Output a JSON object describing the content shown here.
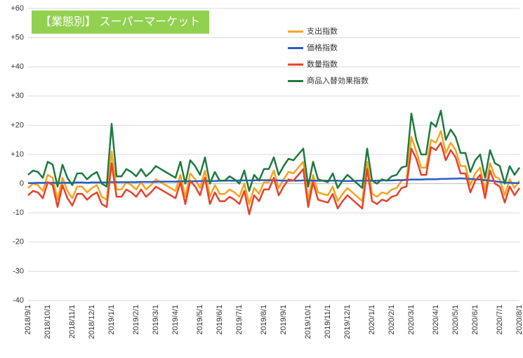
{
  "chart_data": {
    "type": "line",
    "title": "【業態別】 スーパーマーケット",
    "categories": [
      "2018/9/1",
      null,
      null,
      null,
      "2018/10/1",
      null,
      null,
      null,
      null,
      "2018/11/1",
      null,
      null,
      null,
      "2018/12/1",
      null,
      null,
      null,
      "2019/1/1",
      null,
      null,
      null,
      null,
      "2019/2/1",
      null,
      null,
      null,
      "2019/3/1",
      null,
      null,
      null,
      "2019/4/1",
      null,
      null,
      null,
      null,
      "2019/5/1",
      null,
      null,
      null,
      "2019/6/1",
      null,
      null,
      null,
      "2019/7/1",
      null,
      null,
      null,
      null,
      "2019/8/1",
      null,
      null,
      null,
      "2019/9/1",
      null,
      null,
      null,
      null,
      "2019/10/1",
      null,
      null,
      null,
      "2019/11/1",
      null,
      null,
      null,
      "2019/12/1",
      null,
      null,
      null,
      null,
      "2020/1/1",
      null,
      null,
      null,
      "2020/2/1",
      null,
      null,
      null,
      "2020/3/1",
      null,
      null,
      null,
      null,
      "2020/4/1",
      null,
      null,
      null,
      "2020/5/1",
      null,
      null,
      null,
      "2020/6/1",
      null,
      null,
      null,
      null,
      "2020/7/1",
      null,
      null,
      null,
      "2020/8/1"
    ],
    "series": [
      {
        "name": "支出指数",
        "color": "#f5a31c",
        "values": [
          -1.5,
          0,
          -0.5,
          -2.5,
          3,
          2,
          -5.5,
          2,
          -2.5,
          -5,
          -1,
          -1,
          -3,
          -1.5,
          -0.5,
          -4.5,
          -5.5,
          11,
          -2,
          -2,
          0.5,
          -0.5,
          -2,
          0.5,
          -2,
          -0.5,
          1.5,
          0.5,
          -0.5,
          -1.5,
          -2.5,
          3,
          -4.5,
          3.5,
          1.5,
          -1.5,
          4.5,
          -4.5,
          -0.5,
          -3.5,
          -3.5,
          -2,
          -3,
          -4.5,
          0,
          -7,
          -1.5,
          -3.5,
          0.5,
          0.5,
          4.5,
          -1.5,
          1.5,
          4,
          3.5,
          5.5,
          7.5,
          -5.5,
          3,
          -3,
          -3.5,
          -4,
          -1,
          -6,
          -3.5,
          -1.5,
          -3,
          -4.5,
          -6,
          7.5,
          -3.5,
          -4.5,
          -3,
          -3.5,
          -2,
          -1.5,
          1,
          1.5,
          16,
          11,
          5.5,
          5.5,
          15,
          14,
          18,
          10.5,
          14,
          11.5,
          6,
          6,
          -0.5,
          3.5,
          5.5,
          -2.5,
          7,
          2.5,
          1.5,
          -4,
          1.5,
          -1.5,
          1
        ]
      },
      {
        "name": "価格指数",
        "color": "#2a5cc8",
        "values": [
          0.2,
          0.2,
          0.3,
          0.3,
          0.3,
          0.3,
          0.2,
          0.3,
          0.3,
          0.3,
          0.4,
          0.4,
          0.3,
          0.4,
          0.4,
          0.4,
          0.4,
          0.5,
          0.5,
          0.5,
          0.5,
          0.5,
          0.5,
          0.6,
          0.6,
          0.6,
          0.6,
          0.7,
          0.7,
          0.7,
          0.7,
          0.8,
          0.8,
          0.8,
          0.8,
          0.9,
          0.9,
          0.9,
          0.9,
          1,
          1,
          1,
          1,
          1.1,
          1.1,
          1.1,
          1.1,
          1.2,
          1.2,
          1.2,
          1.1,
          1.1,
          1,
          1,
          1,
          1,
          1.1,
          1.1,
          1,
          1,
          1,
          1,
          1,
          1,
          0.9,
          0.9,
          0.9,
          1,
          1,
          1,
          1,
          1,
          1.1,
          1.1,
          1.1,
          1.2,
          1.2,
          1.3,
          1.4,
          1.4,
          1.4,
          1.5,
          1.5,
          1.5,
          1.6,
          1.6,
          1.7,
          1.7,
          1.8,
          1.7,
          1.6,
          1.5,
          1.4,
          1.2,
          1.0,
          0.8,
          0.6,
          0.4,
          0.3,
          0.2,
          0.2
        ]
      },
      {
        "name": "数量指数",
        "color": "#e8412a",
        "values": [
          -4,
          -2.5,
          -3,
          -5,
          0.5,
          -0.5,
          -8,
          -0.5,
          -5,
          -7.5,
          -3.5,
          -3.5,
          -5.5,
          -4,
          -3,
          -7,
          -8,
          7,
          -4.5,
          -4.5,
          -2,
          -3,
          -4.5,
          -2,
          -4.5,
          -3,
          -1,
          -2,
          -3,
          -4,
          -5,
          0.5,
          -7,
          1,
          -1,
          -4,
          2,
          -7,
          -3,
          -6,
          -6,
          -4.5,
          -5.5,
          -7,
          -2.5,
          -10.5,
          -4,
          -6,
          -2,
          -2,
          2,
          -4,
          -1,
          1.5,
          1,
          3,
          5,
          -8,
          0.5,
          -5.5,
          -6,
          -6.5,
          -3.5,
          -8.5,
          -6,
          -4,
          -5.5,
          -7,
          -8.5,
          5,
          -6,
          -7,
          -5.5,
          -6,
          -4.5,
          -4,
          -1.5,
          -1,
          12,
          8.5,
          3,
          3,
          12.5,
          11.5,
          14,
          8,
          11.5,
          9,
          3.5,
          3.5,
          -3,
          1,
          3,
          -5,
          4.5,
          0,
          -1,
          -6.5,
          -1,
          -4,
          -1.5
        ]
      },
      {
        "name": "商品入替効果指数",
        "color": "#1e7a3e",
        "values": [
          3,
          4.5,
          4,
          2,
          7.5,
          6.5,
          -1,
          6.5,
          2,
          -0.5,
          3.5,
          3.5,
          1.5,
          3,
          4,
          0,
          -1,
          20.5,
          2.5,
          2.5,
          5,
          4,
          2.5,
          5,
          2.5,
          4,
          6,
          5,
          4,
          3,
          2,
          7.5,
          0,
          8,
          6,
          3,
          9,
          0,
          4,
          1,
          1,
          2.5,
          1.5,
          0,
          4.5,
          -2.5,
          3,
          1,
          5,
          5,
          9,
          3,
          6,
          8.5,
          8,
          10,
          12,
          -1,
          7.5,
          1.5,
          1,
          0.5,
          3.5,
          -1.5,
          1,
          3,
          1.5,
          0,
          -1.5,
          12,
          1,
          0,
          1.5,
          1,
          2.5,
          3,
          5.5,
          6,
          24,
          15,
          10,
          10,
          21,
          19.5,
          25,
          15,
          18.5,
          16,
          10.5,
          10.5,
          4,
          8,
          10,
          2,
          11.5,
          7,
          6,
          0,
          6,
          3,
          5.5
        ]
      }
    ],
    "ylim": [
      -40,
      60
    ],
    "yticks": [
      -40,
      -30,
      -20,
      -10,
      0,
      {
        "value": 10,
        "label": "+10"
      },
      {
        "value": 20,
        "label": "+20"
      },
      {
        "value": 30,
        "label": "+30"
      },
      {
        "value": 40,
        "label": "+40"
      },
      {
        "value": 50,
        "label": "+50"
      },
      {
        "value": 60,
        "label": "+60"
      }
    ],
    "grid": true
  }
}
